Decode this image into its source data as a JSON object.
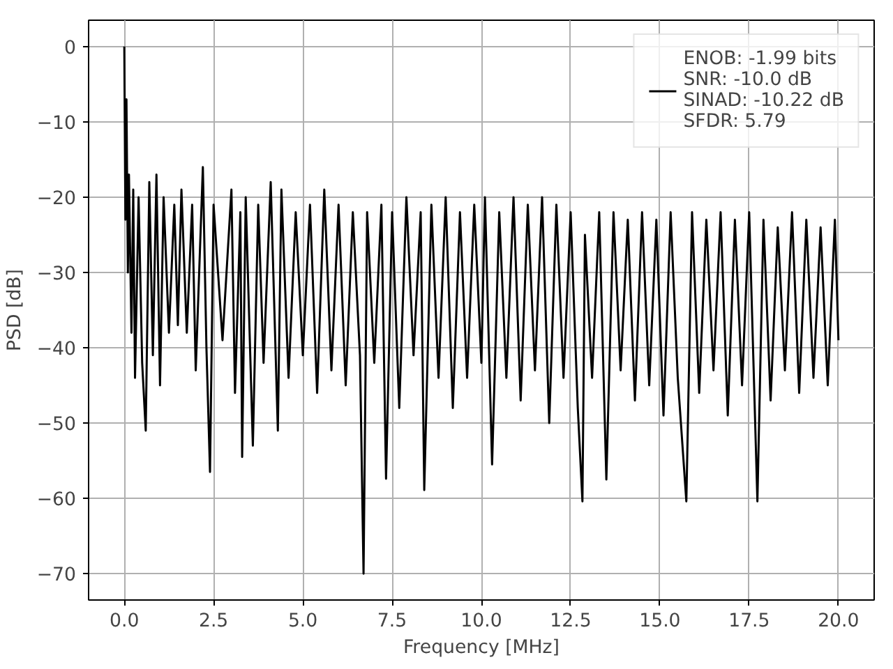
{
  "chart_data": {
    "type": "line",
    "xlabel": "Frequency [MHz]",
    "ylabel": "PSD [dB]",
    "xlim": [
      -1,
      21
    ],
    "ylim": [
      -73.5,
      3.5
    ],
    "xticks": [
      {
        "value": 0,
        "label": "0.0"
      },
      {
        "value": 2.5,
        "label": "2.5"
      },
      {
        "value": 5,
        "label": "5.0"
      },
      {
        "value": 7.5,
        "label": "7.5"
      },
      {
        "value": 10,
        "label": "10.0"
      },
      {
        "value": 12.5,
        "label": "12.5"
      },
      {
        "value": 15,
        "label": "15.0"
      },
      {
        "value": 17.5,
        "label": "17.5"
      },
      {
        "value": 20,
        "label": "20.0"
      }
    ],
    "yticks": [
      {
        "value": -70,
        "label": "−70"
      },
      {
        "value": -60,
        "label": "−60"
      },
      {
        "value": -50,
        "label": "−50"
      },
      {
        "value": -40,
        "label": "−40"
      },
      {
        "value": -30,
        "label": "−30"
      },
      {
        "value": -20,
        "label": "−20"
      },
      {
        "value": -10,
        "label": "−10"
      },
      {
        "value": 0,
        "label": "0"
      }
    ],
    "grid": true,
    "legend": "top right",
    "line_style": "solid",
    "series": [
      {
        "name": "ENOB: -1.99 bits\nSNR: -10.0 dB\nSINAD: -10.22 dB\nSFDR: 5.79",
        "color": "#000000",
        "x": [
          0,
          0.03,
          0.06,
          0.1,
          0.13,
          0.2,
          0.25,
          0.3,
          0.4,
          0.5,
          0.6,
          0.7,
          0.8,
          0.9,
          1.0,
          1.1,
          1.25,
          1.4,
          1.5,
          1.6,
          1.75,
          1.9,
          2.0,
          2.2,
          2.3,
          2.4,
          2.5,
          2.75,
          3.0,
          3.1,
          3.25,
          3.3,
          3.4,
          3.6,
          3.75,
          3.9,
          4.1,
          4.3,
          4.4,
          4.6,
          4.8,
          5.0,
          5.2,
          5.4,
          5.6,
          5.8,
          6.0,
          6.2,
          6.4,
          6.6,
          6.7,
          6.8,
          7.0,
          7.2,
          7.33,
          7.5,
          7.7,
          7.9,
          8.1,
          8.3,
          8.4,
          8.6,
          8.8,
          9.0,
          9.2,
          9.4,
          9.6,
          9.8,
          10.0,
          10.1,
          10.3,
          10.5,
          10.7,
          10.9,
          11.1,
          11.3,
          11.5,
          11.7,
          11.9,
          12.1,
          12.3,
          12.5,
          12.7,
          12.83,
          12.9,
          13.1,
          13.3,
          13.5,
          13.7,
          13.9,
          14.1,
          14.3,
          14.5,
          14.7,
          14.9,
          15.1,
          15.3,
          15.5,
          15.74,
          15.9,
          16.1,
          16.3,
          16.5,
          16.7,
          16.9,
          17.1,
          17.3,
          17.5,
          17.73,
          17.9,
          18.1,
          18.3,
          18.5,
          18.7,
          18.9,
          19.1,
          19.3,
          19.5,
          19.7,
          19.9,
          20.0
        ],
        "values": [
          0,
          -23,
          -7,
          -30,
          -17,
          -38,
          -19,
          -44,
          -20,
          -42,
          -51,
          -18,
          -41,
          -17,
          -45,
          -20,
          -38,
          -21,
          -37,
          -19,
          -38,
          -21,
          -43,
          -16,
          -40,
          -56.5,
          -21,
          -39,
          -19,
          -46,
          -22,
          -54.5,
          -20,
          -53,
          -21,
          -42,
          -18,
          -51,
          -19,
          -44,
          -22,
          -41,
          -21,
          -46,
          -19,
          -43,
          -21,
          -45,
          -22,
          -41,
          -70,
          -22,
          -42,
          -21,
          -57.4,
          -22,
          -48,
          -20,
          -41,
          -22,
          -58.9,
          -21,
          -44,
          -20,
          -48,
          -22,
          -44,
          -21,
          -42,
          -20,
          -55.5,
          -22,
          -44,
          -20,
          -47,
          -21,
          -43,
          -20,
          -50,
          -21,
          -44,
          -22,
          -48,
          -60.4,
          -25,
          -44,
          -22,
          -57.5,
          -22,
          -43,
          -23,
          -47,
          -22,
          -45,
          -23,
          -49,
          -22,
          -44,
          -60.4,
          -22,
          -46,
          -23,
          -43,
          -22,
          -49,
          -23,
          -45,
          -22,
          -60.4,
          -23,
          -47,
          -24,
          -43,
          -22,
          -46,
          -23,
          -44,
          -24,
          -45,
          -23,
          -39
        ]
      }
    ]
  }
}
